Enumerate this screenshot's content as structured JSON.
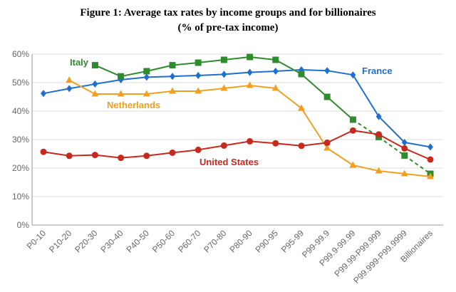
{
  "chart_data": {
    "type": "line",
    "title": "Figure 1: Average tax rates by income groups and for billionaires",
    "subtitle": "(% of pre-tax income)",
    "xlabel": "",
    "ylabel": "",
    "ylim": [
      0,
      60
    ],
    "yticks": [
      0,
      10,
      20,
      30,
      40,
      50,
      60
    ],
    "ytick_labels": [
      "0%",
      "10%",
      "20%",
      "30%",
      "40%",
      "50%",
      "60%"
    ],
    "categories": [
      "P0-10",
      "P10-20",
      "P20-30",
      "P30-40",
      "P40-50",
      "P50-60",
      "P60-70",
      "P70-80",
      "P80-90",
      "P90-95",
      "P95-99",
      "P99-99.9",
      "P99.9-99.99",
      "P99.99-P99.999",
      "P99.999-P99.9999",
      "Billionaires"
    ],
    "grid": true,
    "legend": "inline labels",
    "series": [
      {
        "name": "France",
        "color": "#1f6fd1",
        "marker": "diamond",
        "values": [
          46.2,
          47.9,
          49.5,
          51.0,
          51.9,
          52.2,
          52.5,
          52.9,
          53.6,
          54.0,
          54.5,
          54.2,
          52.7,
          38.1,
          29.0,
          27.4
        ]
      },
      {
        "name": "Italy",
        "color": "#2e8b2e",
        "marker": "square",
        "values": [
          null,
          null,
          56.1,
          52.2,
          54.0,
          56.1,
          57.0,
          58.0,
          59.0,
          58.0,
          53.0,
          45.0,
          37.0,
          30.9,
          24.4,
          18.0
        ],
        "dashed_from_index": 12
      },
      {
        "name": "Netherlands",
        "color": "#f0a020",
        "marker": "triangle",
        "values": [
          null,
          50.8,
          46.0,
          46.0,
          46.0,
          47.0,
          47.0,
          48.0,
          49.0,
          48.0,
          41.0,
          27.0,
          21.0,
          19.0,
          18.0,
          17.0
        ]
      },
      {
        "name": "United States",
        "color": "#c8281e",
        "marker": "circle",
        "values": [
          25.7,
          24.3,
          24.6,
          23.6,
          24.3,
          25.4,
          26.4,
          27.9,
          29.4,
          28.7,
          27.8,
          28.9,
          33.2,
          31.8,
          26.9,
          23.0
        ]
      }
    ]
  }
}
